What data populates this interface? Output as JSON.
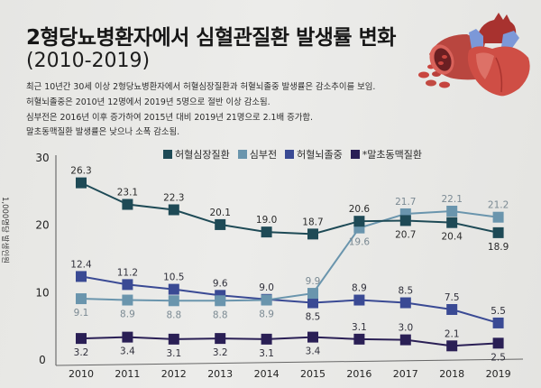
{
  "header": {
    "title": "2형당뇨병환자에서 심혈관질환 발생률 변화",
    "subtitle": "(2010-2019)",
    "description": [
      "최근 10년간 30세 이상 2형당뇨병환자에서 허혈심장질환과 허혈뇌졸중 발생률은 감소추이를 보임.",
      "허혈뇌졸중은 2010년 12명에서 2019년 5명으로 절반 이상 감소됨.",
      "심부전은 2016년 이후 증가하여 2015년 대비 2019년 21명으로 2.1배 증가함.",
      "말초동맥질환 발생률은 낮으나 소폭 감소됨."
    ],
    "illustration": "heart-and-artery-illustration"
  },
  "chart_data": {
    "type": "line",
    "title": "2형당뇨병환자에서 심혈관질환 발생률 변화 (2010-2019)",
    "xlabel": "",
    "ylabel": "1,000명당 발생인원",
    "x": [
      "2010",
      "2011",
      "2012",
      "2013",
      "2014",
      "2015",
      "2016",
      "2017",
      "2018",
      "2019"
    ],
    "ylim": [
      0,
      30
    ],
    "yticks": [
      "0",
      "10",
      "20",
      "30"
    ],
    "grid": false,
    "legend_position": "top-center",
    "series": [
      {
        "name": "허혈심장질환",
        "color": "#1e4a56",
        "label_color": "#2a2a2a",
        "values": [
          26.3,
          23.1,
          22.3,
          20.1,
          19.0,
          18.7,
          20.6,
          20.7,
          20.4,
          18.9
        ],
        "label_pos": [
          "above",
          "above",
          "above",
          "above",
          "above",
          "above",
          "above",
          "below",
          "below",
          "below"
        ]
      },
      {
        "name": "심부전",
        "color": "#6a95ad",
        "label_color": "#7b8a93",
        "values": [
          9.1,
          8.9,
          8.8,
          8.8,
          8.9,
          9.9,
          19.6,
          21.7,
          22.1,
          21.2
        ],
        "label_pos": [
          "below",
          "below",
          "below",
          "below",
          "below",
          "above",
          "below",
          "above",
          "above",
          "above"
        ]
      },
      {
        "name": "허혈뇌졸중",
        "color": "#3a4a94",
        "label_color": "#2f2f3a",
        "values": [
          12.4,
          11.2,
          10.5,
          9.6,
          9.0,
          8.5,
          8.9,
          8.5,
          7.5,
          5.5
        ],
        "label_pos": [
          "above",
          "above",
          "above",
          "above",
          "above",
          "below",
          "above",
          "above",
          "above",
          "above"
        ]
      },
      {
        "name": "*말초동맥질환",
        "color": "#2a1f55",
        "label_color": "#2f2f3a",
        "values": [
          3.2,
          3.4,
          3.1,
          3.2,
          3.1,
          3.4,
          3.1,
          3.0,
          2.1,
          2.5
        ],
        "label_pos": [
          "below",
          "below",
          "below",
          "below",
          "below",
          "below",
          "above",
          "above",
          "above",
          "below"
        ]
      }
    ]
  }
}
